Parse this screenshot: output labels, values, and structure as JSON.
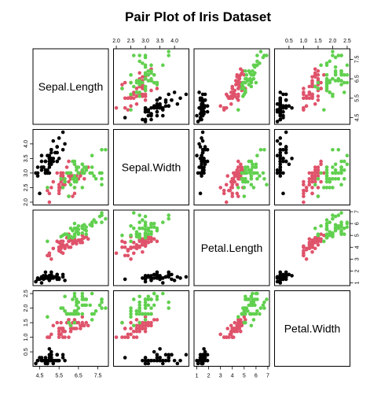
{
  "chart_data": {
    "type": "scatter",
    "title": "Pair Plot of Iris Dataset",
    "layout": "pairs-matrix",
    "variables": [
      "Sepal.Length",
      "Sepal.Width",
      "Petal.Length",
      "Petal.Width"
    ],
    "ranges": {
      "Sepal.Length": [
        4.3,
        7.9
      ],
      "Sepal.Width": [
        2.0,
        4.4
      ],
      "Petal.Length": [
        1.0,
        6.9
      ],
      "Petal.Width": [
        0.1,
        2.5
      ]
    },
    "ticks": {
      "Sepal.Length": [
        "4.5",
        "5.5",
        "6.5",
        "7.5"
      ],
      "Sepal.Width": [
        "2.0",
        "2.5",
        "3.0",
        "3.5",
        "4.0"
      ],
      "Petal.Length": [
        "1",
        "2",
        "3",
        "4",
        "5",
        "6",
        "7"
      ],
      "Petal.Width": [
        "0.5",
        "1.0",
        "1.5",
        "2.0",
        "2.5"
      ]
    },
    "grid": false,
    "legend": "none",
    "series": [
      {
        "color": "#000000",
        "points": [
          [
            5.1,
            3.5,
            1.4,
            0.2
          ],
          [
            4.9,
            3.0,
            1.4,
            0.2
          ],
          [
            4.7,
            3.2,
            1.3,
            0.2
          ],
          [
            4.6,
            3.1,
            1.5,
            0.2
          ],
          [
            5.0,
            3.6,
            1.4,
            0.2
          ],
          [
            5.4,
            3.9,
            1.7,
            0.4
          ],
          [
            4.6,
            3.4,
            1.4,
            0.3
          ],
          [
            5.0,
            3.4,
            1.5,
            0.2
          ],
          [
            4.4,
            2.9,
            1.4,
            0.2
          ],
          [
            4.9,
            3.1,
            1.5,
            0.1
          ],
          [
            5.4,
            3.7,
            1.5,
            0.2
          ],
          [
            4.8,
            3.4,
            1.6,
            0.2
          ],
          [
            4.8,
            3.0,
            1.4,
            0.1
          ],
          [
            4.3,
            3.0,
            1.1,
            0.1
          ],
          [
            5.8,
            4.0,
            1.2,
            0.2
          ],
          [
            5.7,
            4.4,
            1.5,
            0.4
          ],
          [
            5.4,
            3.9,
            1.3,
            0.4
          ],
          [
            5.1,
            3.5,
            1.4,
            0.3
          ],
          [
            5.7,
            3.8,
            1.7,
            0.3
          ],
          [
            5.1,
            3.8,
            1.5,
            0.3
          ],
          [
            5.4,
            3.4,
            1.7,
            0.2
          ],
          [
            5.1,
            3.7,
            1.5,
            0.4
          ],
          [
            4.6,
            3.6,
            1.0,
            0.2
          ],
          [
            5.1,
            3.3,
            1.7,
            0.5
          ],
          [
            4.8,
            3.4,
            1.9,
            0.2
          ],
          [
            5.0,
            3.0,
            1.6,
            0.2
          ],
          [
            5.0,
            3.4,
            1.6,
            0.4
          ],
          [
            5.2,
            3.5,
            1.5,
            0.2
          ],
          [
            5.2,
            3.4,
            1.4,
            0.2
          ],
          [
            4.7,
            3.2,
            1.6,
            0.2
          ],
          [
            4.8,
            3.1,
            1.6,
            0.2
          ],
          [
            5.4,
            3.4,
            1.5,
            0.4
          ],
          [
            5.2,
            4.1,
            1.5,
            0.1
          ],
          [
            5.5,
            4.2,
            1.4,
            0.2
          ],
          [
            4.9,
            3.1,
            1.5,
            0.2
          ],
          [
            5.0,
            3.2,
            1.2,
            0.2
          ],
          [
            5.5,
            3.5,
            1.3,
            0.2
          ],
          [
            4.9,
            3.6,
            1.4,
            0.1
          ],
          [
            4.4,
            3.0,
            1.3,
            0.2
          ],
          [
            5.1,
            3.4,
            1.5,
            0.2
          ],
          [
            5.0,
            3.5,
            1.3,
            0.3
          ],
          [
            4.5,
            2.3,
            1.3,
            0.3
          ],
          [
            4.4,
            3.2,
            1.3,
            0.2
          ],
          [
            5.0,
            3.5,
            1.6,
            0.6
          ],
          [
            5.1,
            3.8,
            1.9,
            0.4
          ],
          [
            4.8,
            3.0,
            1.4,
            0.3
          ],
          [
            5.1,
            3.8,
            1.6,
            0.2
          ],
          [
            4.6,
            3.2,
            1.4,
            0.2
          ],
          [
            5.3,
            3.7,
            1.5,
            0.2
          ],
          [
            5.0,
            3.3,
            1.4,
            0.2
          ]
        ]
      },
      {
        "color": "#df536b",
        "points": [
          [
            7.0,
            3.2,
            4.7,
            1.4
          ],
          [
            6.4,
            3.2,
            4.5,
            1.5
          ],
          [
            6.9,
            3.1,
            4.9,
            1.5
          ],
          [
            5.5,
            2.3,
            4.0,
            1.3
          ],
          [
            6.5,
            2.8,
            4.6,
            1.5
          ],
          [
            5.7,
            2.8,
            4.5,
            1.3
          ],
          [
            6.3,
            3.3,
            4.7,
            1.6
          ],
          [
            4.9,
            2.4,
            3.3,
            1.0
          ],
          [
            6.6,
            2.9,
            4.6,
            1.3
          ],
          [
            5.2,
            2.7,
            3.9,
            1.4
          ],
          [
            5.0,
            2.0,
            3.5,
            1.0
          ],
          [
            5.9,
            3.0,
            4.2,
            1.5
          ],
          [
            6.0,
            2.2,
            4.0,
            1.0
          ],
          [
            6.1,
            2.9,
            4.7,
            1.4
          ],
          [
            5.6,
            2.9,
            3.6,
            1.3
          ],
          [
            6.7,
            3.1,
            4.4,
            1.4
          ],
          [
            5.6,
            3.0,
            4.5,
            1.5
          ],
          [
            5.8,
            2.7,
            4.1,
            1.0
          ],
          [
            6.2,
            2.2,
            4.5,
            1.5
          ],
          [
            5.6,
            2.5,
            3.9,
            1.1
          ],
          [
            5.9,
            3.2,
            4.8,
            1.8
          ],
          [
            6.1,
            2.8,
            4.0,
            1.3
          ],
          [
            6.3,
            2.5,
            4.9,
            1.5
          ],
          [
            6.1,
            2.8,
            4.7,
            1.2
          ],
          [
            6.4,
            2.9,
            4.3,
            1.3
          ],
          [
            6.6,
            3.0,
            4.4,
            1.4
          ],
          [
            6.8,
            2.8,
            4.8,
            1.4
          ],
          [
            6.7,
            3.0,
            5.0,
            1.7
          ],
          [
            6.0,
            2.9,
            4.5,
            1.5
          ],
          [
            5.7,
            2.6,
            3.5,
            1.0
          ],
          [
            5.5,
            2.4,
            3.8,
            1.1
          ],
          [
            5.5,
            2.4,
            3.7,
            1.0
          ],
          [
            5.8,
            2.7,
            3.9,
            1.2
          ],
          [
            6.0,
            2.7,
            5.1,
            1.6
          ],
          [
            5.4,
            3.0,
            4.5,
            1.5
          ],
          [
            6.0,
            3.4,
            4.5,
            1.6
          ],
          [
            6.7,
            3.1,
            4.7,
            1.5
          ],
          [
            6.3,
            2.3,
            4.4,
            1.3
          ],
          [
            5.6,
            3.0,
            4.1,
            1.3
          ],
          [
            5.5,
            2.5,
            4.0,
            1.3
          ],
          [
            5.5,
            2.6,
            4.4,
            1.2
          ],
          [
            6.1,
            3.0,
            4.6,
            1.4
          ],
          [
            5.8,
            2.6,
            4.0,
            1.2
          ],
          [
            5.0,
            2.3,
            3.3,
            1.0
          ],
          [
            5.6,
            2.7,
            4.2,
            1.3
          ],
          [
            5.7,
            3.0,
            4.2,
            1.2
          ],
          [
            5.7,
            2.9,
            4.2,
            1.3
          ],
          [
            6.2,
            2.9,
            4.3,
            1.3
          ],
          [
            5.1,
            2.5,
            3.0,
            1.1
          ],
          [
            5.7,
            2.8,
            4.1,
            1.3
          ]
        ]
      },
      {
        "color": "#61d04f",
        "points": [
          [
            6.3,
            3.3,
            6.0,
            2.5
          ],
          [
            5.8,
            2.7,
            5.1,
            1.9
          ],
          [
            7.1,
            3.0,
            5.9,
            2.1
          ],
          [
            6.3,
            2.9,
            5.6,
            1.8
          ],
          [
            6.5,
            3.0,
            5.8,
            2.2
          ],
          [
            7.6,
            3.0,
            6.6,
            2.1
          ],
          [
            4.9,
            2.5,
            4.5,
            1.7
          ],
          [
            7.3,
            2.9,
            6.3,
            1.8
          ],
          [
            6.7,
            2.5,
            5.8,
            1.8
          ],
          [
            7.2,
            3.6,
            6.1,
            2.5
          ],
          [
            6.5,
            3.2,
            5.1,
            2.0
          ],
          [
            6.4,
            2.7,
            5.3,
            1.9
          ],
          [
            6.8,
            3.0,
            5.5,
            2.1
          ],
          [
            5.7,
            2.5,
            5.0,
            2.0
          ],
          [
            5.8,
            2.8,
            5.1,
            2.4
          ],
          [
            6.4,
            3.2,
            5.3,
            2.3
          ],
          [
            6.5,
            3.0,
            5.5,
            1.8
          ],
          [
            7.7,
            3.8,
            6.7,
            2.2
          ],
          [
            7.7,
            2.6,
            6.9,
            2.3
          ],
          [
            6.0,
            2.2,
            5.0,
            1.5
          ],
          [
            6.9,
            3.2,
            5.7,
            2.3
          ],
          [
            5.6,
            2.8,
            4.9,
            2.0
          ],
          [
            7.7,
            2.8,
            6.7,
            2.0
          ],
          [
            6.3,
            2.7,
            4.9,
            1.8
          ],
          [
            6.7,
            3.3,
            5.7,
            2.1
          ],
          [
            7.2,
            3.2,
            6.0,
            1.8
          ],
          [
            6.2,
            2.8,
            4.8,
            1.8
          ],
          [
            6.1,
            3.0,
            4.9,
            1.8
          ],
          [
            6.4,
            2.8,
            5.6,
            2.1
          ],
          [
            7.2,
            3.0,
            5.8,
            1.6
          ],
          [
            7.4,
            2.8,
            6.1,
            1.9
          ],
          [
            7.9,
            3.8,
            6.4,
            2.0
          ],
          [
            6.4,
            2.8,
            5.6,
            2.2
          ],
          [
            6.3,
            2.8,
            5.1,
            1.5
          ],
          [
            6.1,
            2.6,
            5.6,
            1.4
          ],
          [
            7.7,
            3.0,
            6.1,
            2.3
          ],
          [
            6.3,
            3.4,
            5.6,
            2.4
          ],
          [
            6.4,
            3.1,
            5.5,
            1.8
          ],
          [
            6.0,
            3.0,
            4.8,
            1.8
          ],
          [
            6.9,
            3.1,
            5.4,
            2.1
          ],
          [
            6.7,
            3.1,
            5.6,
            2.4
          ],
          [
            6.9,
            3.1,
            5.1,
            2.3
          ],
          [
            5.8,
            2.7,
            5.1,
            1.9
          ],
          [
            6.8,
            3.2,
            5.9,
            2.3
          ],
          [
            6.7,
            3.3,
            5.7,
            2.5
          ],
          [
            6.7,
            3.0,
            5.2,
            2.3
          ],
          [
            6.3,
            2.5,
            5.0,
            1.9
          ],
          [
            6.5,
            3.0,
            5.2,
            2.0
          ],
          [
            6.2,
            3.4,
            5.4,
            2.3
          ],
          [
            5.9,
            3.0,
            5.1,
            1.8
          ]
        ]
      }
    ]
  }
}
